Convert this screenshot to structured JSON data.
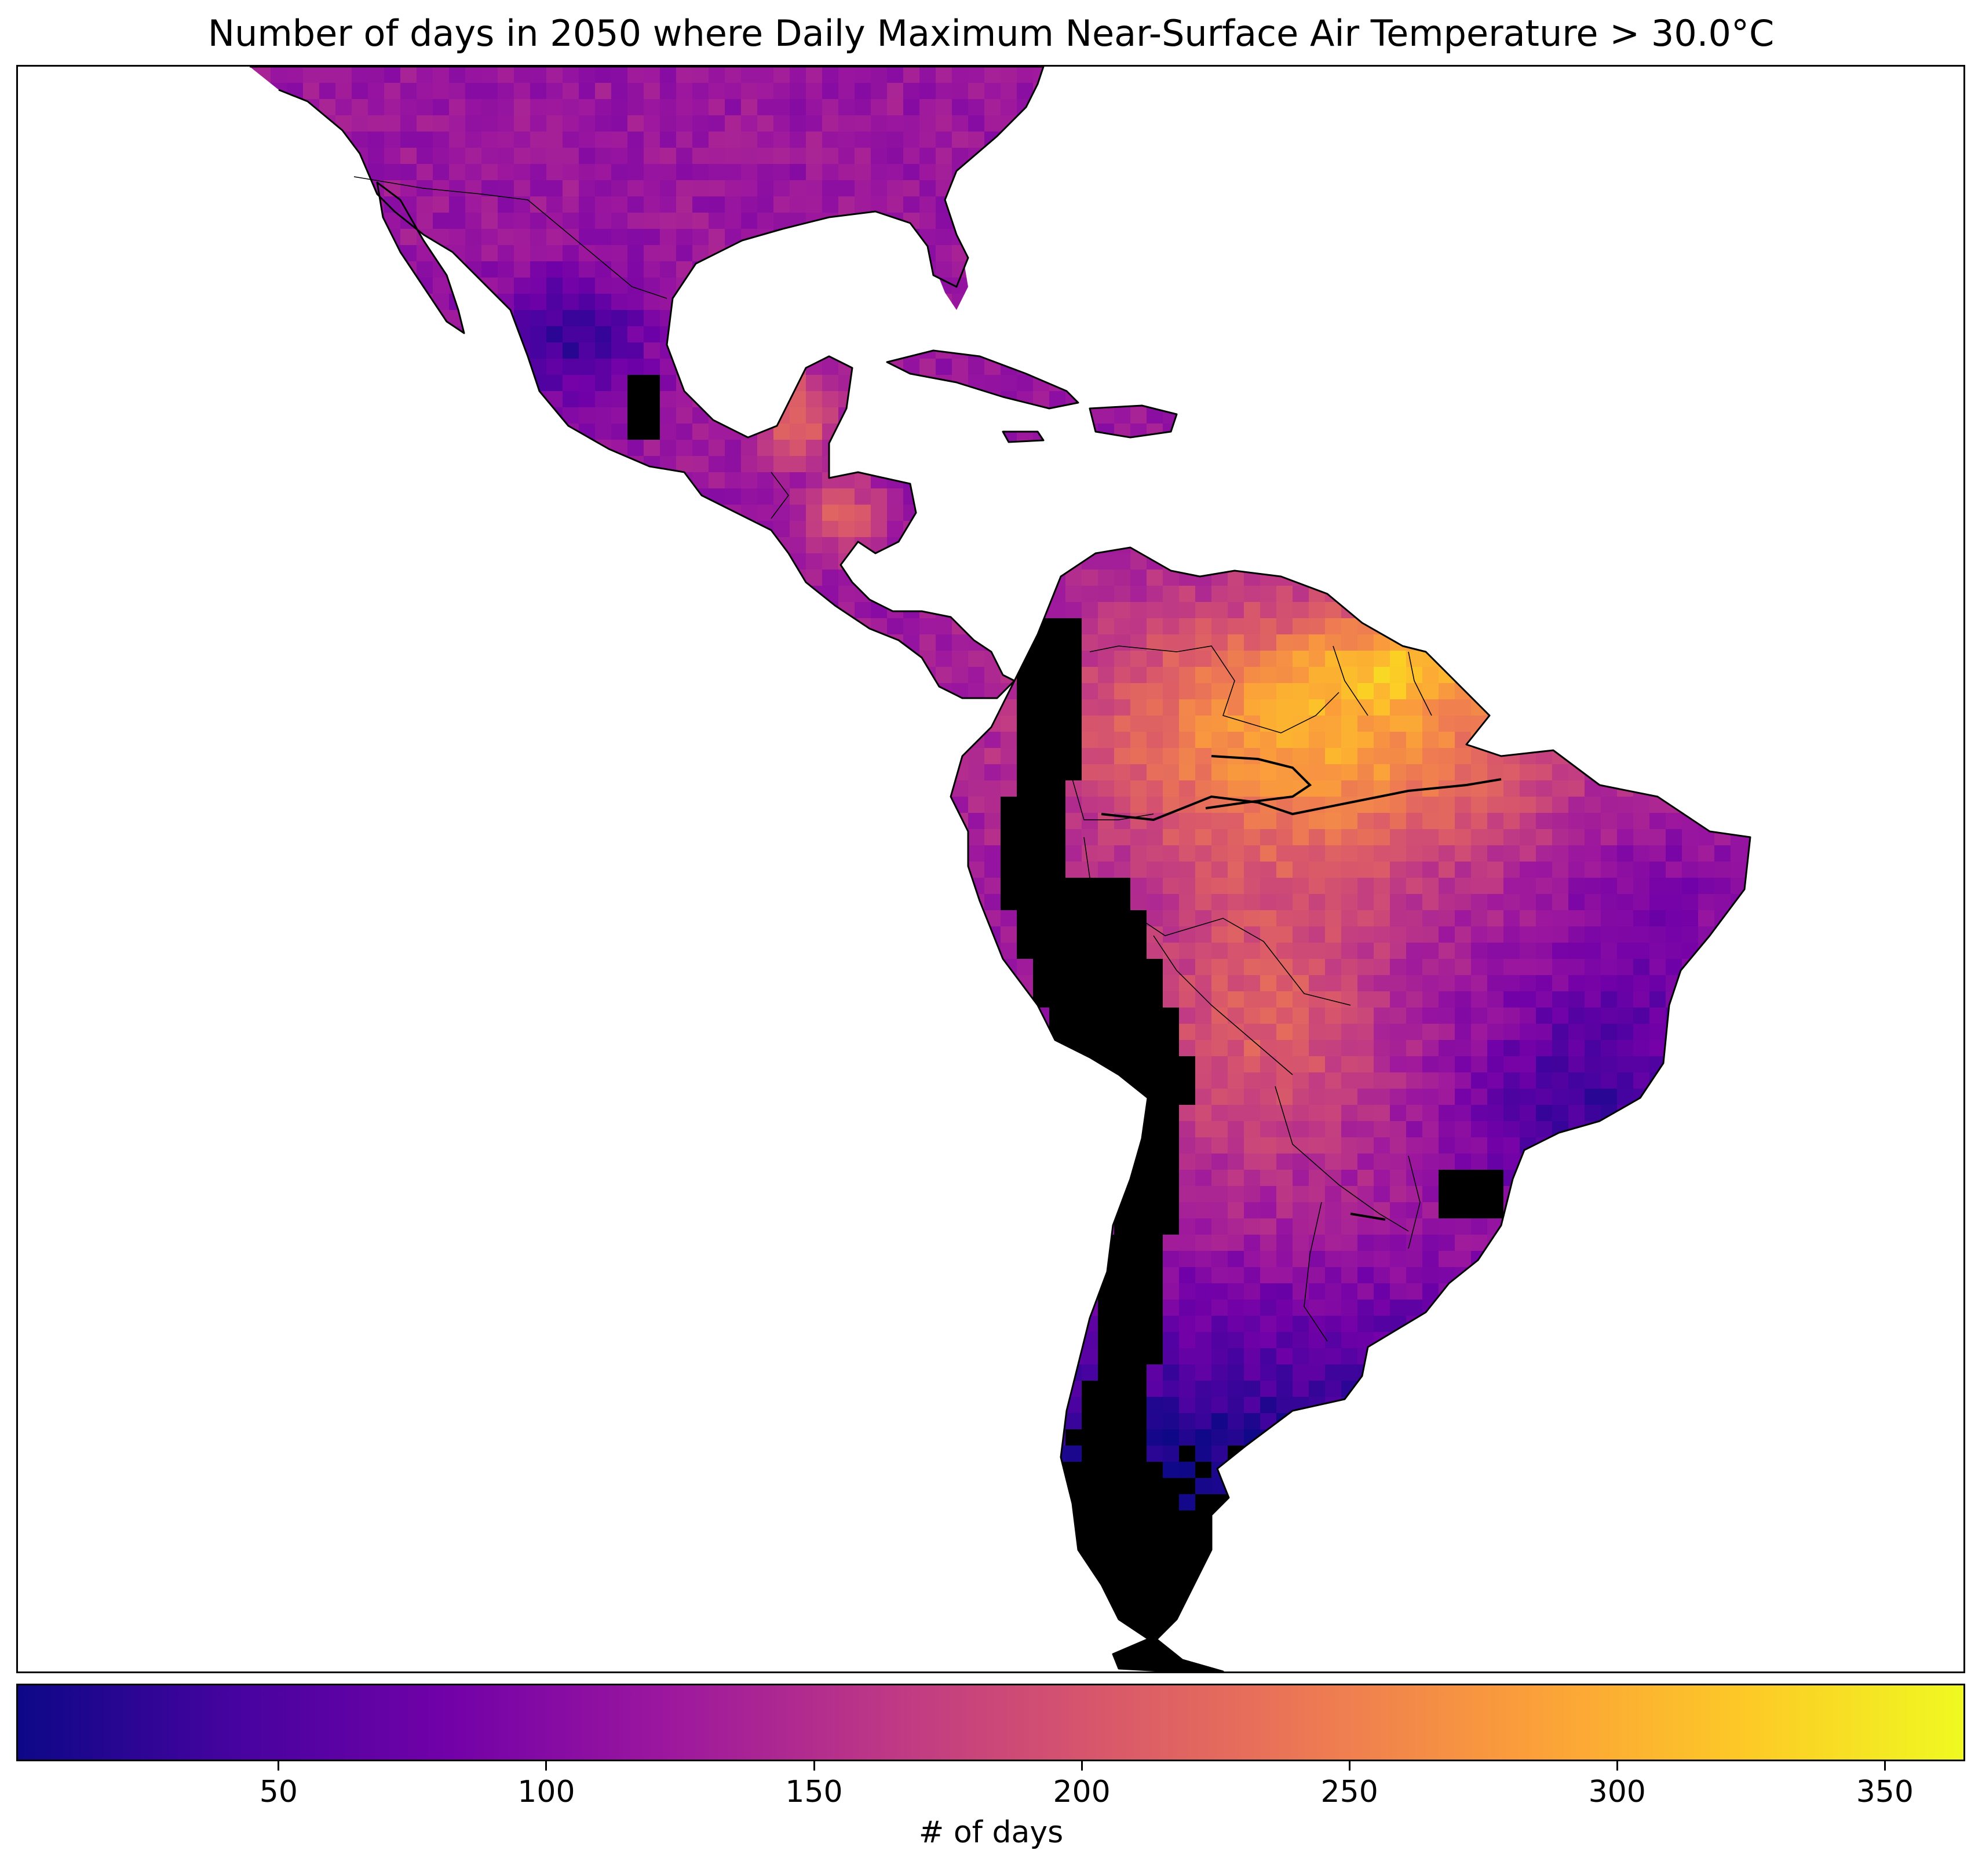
{
  "title": "Number of days in 2050 where Daily Maximum Near-Surface Air Temperature > 30.0°C",
  "colorbar": {
    "label": "# of days",
    "min": 1,
    "max": 365,
    "ticks": [
      50,
      100,
      150,
      200,
      250,
      300,
      350
    ],
    "colormap": "plasma",
    "colormap_stops": [
      "#0d0887",
      "#46039f",
      "#7201a8",
      "#9c179e",
      "#bd3786",
      "#d8576b",
      "#ed7953",
      "#fb9f3a",
      "#fdca26",
      "#f0f921"
    ]
  },
  "map": {
    "extent": "Central and South America with southern United States, Caribbean islands",
    "land_outline_color": "#000000",
    "below_threshold_color": "#000000"
  }
}
